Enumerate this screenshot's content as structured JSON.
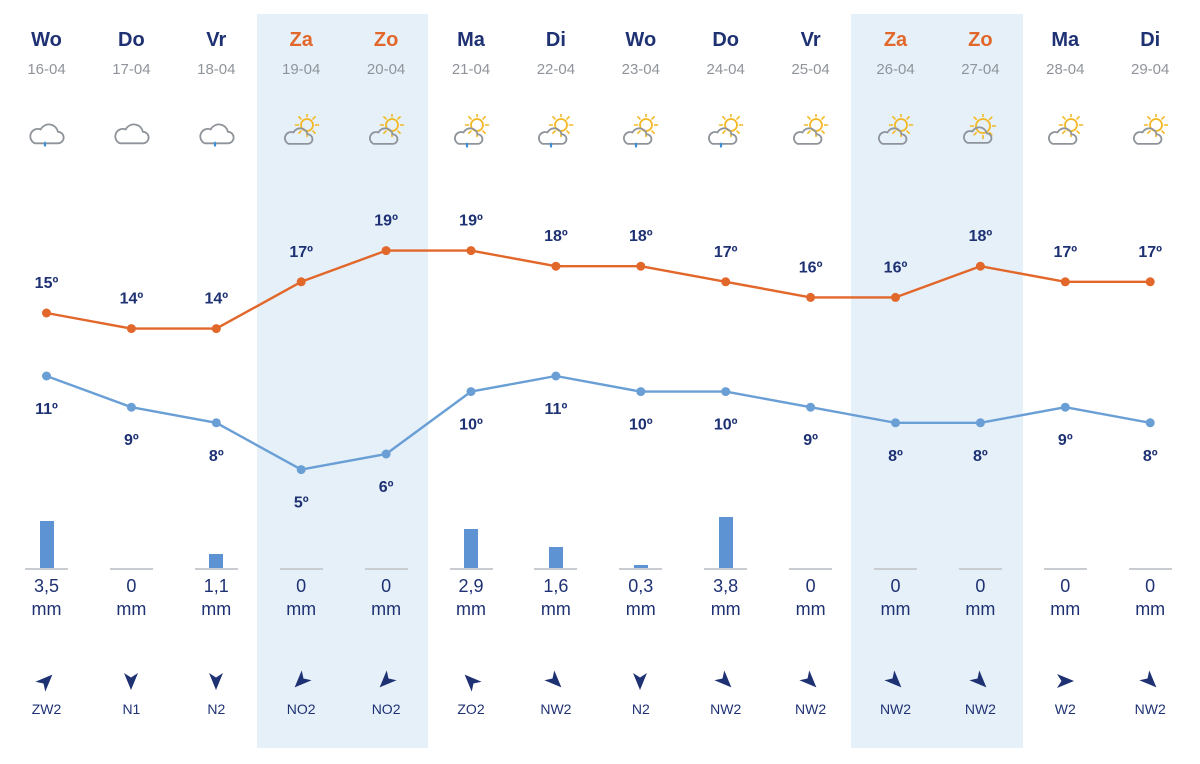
{
  "colors": {
    "max_line": "#e2672a",
    "min_line": "#6a9fd6",
    "weekend_band": "#e6f0f9",
    "weekday_name": "#1e3173",
    "weekend_name": "#e2672a",
    "precip_bar": "#5d93d2"
  },
  "temp_unit": "º",
  "precip_unit": "mm",
  "days": [
    {
      "day": "Wo",
      "date": "16-04",
      "weekend": false,
      "icon": "cloud-rain-icon",
      "max": "15",
      "min": "11",
      "precip": "3,5",
      "precip_value": 3.5,
      "wind": "ZW2",
      "wind_dir": "arrow-northeast-icon"
    },
    {
      "day": "Do",
      "date": "17-04",
      "weekend": false,
      "icon": "cloud-icon",
      "max": "14",
      "min": "9",
      "precip": "0",
      "precip_value": 0,
      "wind": "N1",
      "wind_dir": "arrow-south-icon"
    },
    {
      "day": "Vr",
      "date": "18-04",
      "weekend": false,
      "icon": "cloud-rain-icon",
      "max": "14",
      "min": "8",
      "precip": "1,1",
      "precip_value": 1.1,
      "wind": "N2",
      "wind_dir": "arrow-south-icon"
    },
    {
      "day": "Za",
      "date": "19-04",
      "weekend": true,
      "icon": "cloud-sun-icon",
      "max": "17",
      "min": "5",
      "precip": "0",
      "precip_value": 0,
      "wind": "NO2",
      "wind_dir": "arrow-southwest-icon"
    },
    {
      "day": "Zo",
      "date": "20-04",
      "weekend": true,
      "icon": "cloud-sun-icon",
      "max": "19",
      "min": "6",
      "precip": "0",
      "precip_value": 0,
      "wind": "NO2",
      "wind_dir": "arrow-southwest-icon"
    },
    {
      "day": "Ma",
      "date": "21-04",
      "weekend": false,
      "icon": "cloud-sun-rain-icon",
      "max": "19",
      "min": "10",
      "precip": "2,9",
      "precip_value": 2.9,
      "wind": "ZO2",
      "wind_dir": "arrow-northwest-icon"
    },
    {
      "day": "Di",
      "date": "22-04",
      "weekend": false,
      "icon": "cloud-sun-rain-icon",
      "max": "18",
      "min": "11",
      "precip": "1,6",
      "precip_value": 1.6,
      "wind": "NW2",
      "wind_dir": "arrow-southeast-icon"
    },
    {
      "day": "Wo",
      "date": "23-04",
      "weekend": false,
      "icon": "cloud-sun-rain-icon",
      "max": "18",
      "min": "10",
      "precip": "0,3",
      "precip_value": 0.3,
      "wind": "N2",
      "wind_dir": "arrow-south-icon"
    },
    {
      "day": "Do",
      "date": "24-04",
      "weekend": false,
      "icon": "cloud-sun-rain-icon",
      "max": "17",
      "min": "10",
      "precip": "3,8",
      "precip_value": 3.8,
      "wind": "NW2",
      "wind_dir": "arrow-southeast-icon"
    },
    {
      "day": "Vr",
      "date": "25-04",
      "weekend": false,
      "icon": "cloud-sun-icon",
      "max": "16",
      "min": "9",
      "precip": "0",
      "precip_value": 0,
      "wind": "NW2",
      "wind_dir": "arrow-southeast-icon"
    },
    {
      "day": "Za",
      "date": "26-04",
      "weekend": true,
      "icon": "cloud-sun-icon",
      "max": "16",
      "min": "8",
      "precip": "0",
      "precip_value": 0,
      "wind": "NW2",
      "wind_dir": "arrow-southeast-icon"
    },
    {
      "day": "Zo",
      "date": "27-04",
      "weekend": true,
      "icon": "sun-cloud-icon",
      "max": "18",
      "min": "8",
      "precip": "0",
      "precip_value": 0,
      "wind": "NW2",
      "wind_dir": "arrow-southeast-icon"
    },
    {
      "day": "Ma",
      "date": "28-04",
      "weekend": false,
      "icon": "cloud-sun-icon",
      "max": "17",
      "min": "9",
      "precip": "0",
      "precip_value": 0,
      "wind": "W2",
      "wind_dir": "arrow-east-icon"
    },
    {
      "day": "Di",
      "date": "29-04",
      "weekend": false,
      "icon": "cloud-sun-icon",
      "max": "17",
      "min": "8",
      "precip": "0",
      "precip_value": 0,
      "wind": "NW2",
      "wind_dir": "arrow-southeast-icon"
    }
  ],
  "chart_data": {
    "type": "line",
    "x": [
      "16-04",
      "17-04",
      "18-04",
      "19-04",
      "20-04",
      "21-04",
      "22-04",
      "23-04",
      "24-04",
      "25-04",
      "26-04",
      "27-04",
      "28-04",
      "29-04"
    ],
    "series": [
      {
        "values": [
          15,
          14,
          14,
          17,
          19,
          19,
          18,
          18,
          17,
          16,
          16,
          18,
          17,
          17
        ],
        "color": "#e2672a"
      },
      {
        "values": [
          11,
          9,
          8,
          5,
          6,
          10,
          11,
          10,
          10,
          9,
          8,
          8,
          9,
          8
        ],
        "color": "#6a9fd6"
      }
    ],
    "grid": false
  }
}
